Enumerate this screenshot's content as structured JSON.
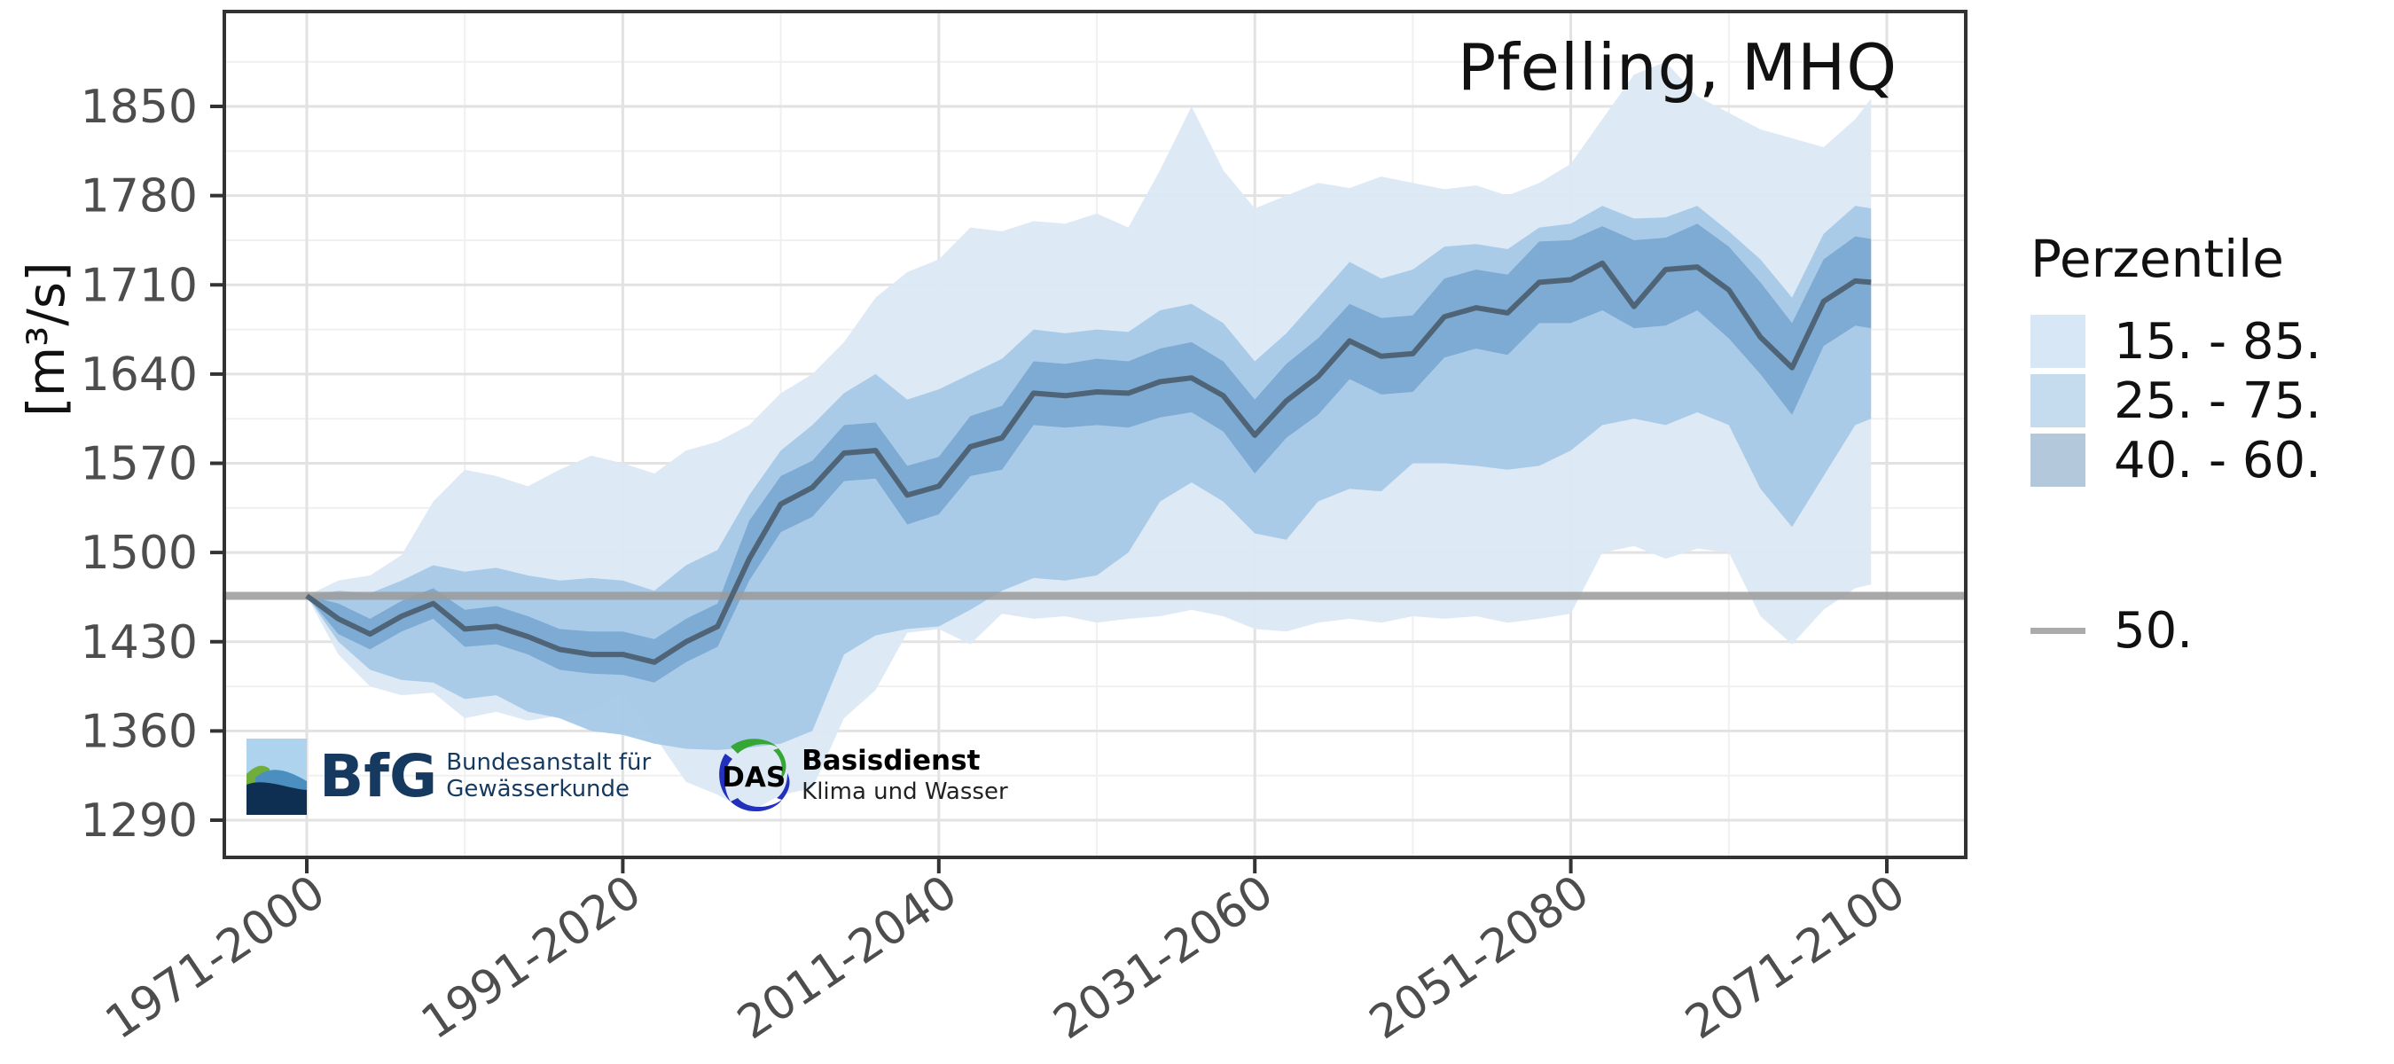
{
  "title": "Pfelling, MHQ",
  "y_axis": {
    "label": "[m³/s]"
  },
  "legend": {
    "title": "Perzentile",
    "bands": [
      {
        "label": "15. - 85.",
        "color": "#d8e7f5"
      },
      {
        "label": "25. - 75.",
        "color": "#c5dbee"
      },
      {
        "label": "40. - 60.",
        "color": "#b4c8dc"
      }
    ],
    "line": {
      "label": "50.",
      "color": "#ababab"
    }
  },
  "logos": {
    "bfg": {
      "acronym": "BfG",
      "line1": "Bundesanstalt für",
      "line2": "Gewässerkunde"
    },
    "das": {
      "acronym": "DAS",
      "line1": "Basisdienst",
      "line2": "Klima und Wasser"
    }
  },
  "chart_data": {
    "type": "area",
    "title": "Pfelling, MHQ",
    "xlabel": "",
    "ylabel": "[m³/s]",
    "ylim": [
      1249,
      1924
    ],
    "y_ticks": [
      1290,
      1360,
      1430,
      1500,
      1570,
      1640,
      1710,
      1780,
      1850
    ],
    "x_tick_years": [
      1971,
      1991,
      2011,
      2031,
      2051,
      2071
    ],
    "x_tick_labels": [
      "1971-2000",
      "1991-2020",
      "2011-2040",
      "2031-2060",
      "2051-2080",
      "2071-2100"
    ],
    "grid": {
      "major_color": "#e2e2e2",
      "minor_color": "#f0f0f0",
      "border_color": "#333333"
    },
    "reference_line": {
      "label": "50.",
      "value": 1466,
      "color": "#9a9a9a"
    },
    "median_color": "#4f6477",
    "band_fill_colors": {
      "p15_p85": "#dbe9f6",
      "p25_p75": "#a6c9e7",
      "p40_p60": "#7aa9d2"
    },
    "x_years": [
      1971,
      1973,
      1975,
      1977,
      1979,
      1981,
      1983,
      1985,
      1987,
      1989,
      1991,
      1993,
      1995,
      1997,
      1999,
      2001,
      2003,
      2005,
      2007,
      2009,
      2011,
      2013,
      2015,
      2017,
      2019,
      2021,
      2023,
      2025,
      2027,
      2029,
      2031,
      2033,
      2035,
      2037,
      2039,
      2041,
      2043,
      2045,
      2047,
      2049,
      2051,
      2053,
      2055,
      2057,
      2059,
      2061,
      2063,
      2065,
      2067,
      2069,
      2070
    ],
    "series": [
      {
        "name": "p15",
        "values": [
          1466,
          1420,
          1395,
          1388,
          1390,
          1370,
          1375,
          1368,
          1372,
          1375,
          1390,
          1356,
          1320,
          1310,
          1296,
          1310,
          1315,
          1370,
          1392,
          1437,
          1440,
          1428,
          1452,
          1448,
          1450,
          1445,
          1448,
          1450,
          1455,
          1450,
          1440,
          1438,
          1445,
          1448,
          1445,
          1450,
          1448,
          1450,
          1445,
          1448,
          1452,
          1500,
          1505,
          1495,
          1503,
          1500,
          1450,
          1428,
          1455,
          1472,
          1475
        ]
      },
      {
        "name": "p25",
        "values": [
          1466,
          1430,
          1408,
          1400,
          1398,
          1385,
          1388,
          1375,
          1370,
          1360,
          1357,
          1350,
          1346,
          1345,
          1347,
          1350,
          1360,
          1420,
          1435,
          1440,
          1442,
          1455,
          1470,
          1480,
          1478,
          1482,
          1500,
          1540,
          1555,
          1540,
          1515,
          1510,
          1540,
          1550,
          1548,
          1570,
          1570,
          1568,
          1565,
          1568,
          1580,
          1600,
          1605,
          1600,
          1610,
          1600,
          1550,
          1520,
          1560,
          1600,
          1605
        ]
      },
      {
        "name": "p40",
        "values": [
          1466,
          1436,
          1424,
          1438,
          1448,
          1426,
          1428,
          1420,
          1408,
          1405,
          1404,
          1398,
          1414,
          1426,
          1478,
          1516,
          1528,
          1556,
          1558,
          1522,
          1530,
          1560,
          1565,
          1600,
          1598,
          1600,
          1598,
          1606,
          1610,
          1595,
          1562,
          1590,
          1608,
          1636,
          1624,
          1626,
          1653,
          1660,
          1655,
          1680,
          1680,
          1690,
          1676,
          1678,
          1690,
          1668,
          1640,
          1608,
          1662,
          1678,
          1676
        ]
      },
      {
        "name": "p50",
        "values": [
          1466,
          1448,
          1436,
          1450,
          1460,
          1440,
          1442,
          1434,
          1424,
          1420,
          1420,
          1414,
          1430,
          1442,
          1495,
          1538,
          1551,
          1578,
          1580,
          1545,
          1552,
          1583,
          1590,
          1625,
          1623,
          1626,
          1625,
          1634,
          1637,
          1623,
          1592,
          1619,
          1638,
          1666,
          1654,
          1656,
          1685,
          1692,
          1688,
          1712,
          1714,
          1727,
          1693,
          1722,
          1724,
          1706,
          1669,
          1645,
          1697,
          1713,
          1712
        ]
      },
      {
        "name": "p60",
        "values": [
          1466,
          1460,
          1448,
          1462,
          1472,
          1455,
          1458,
          1450,
          1440,
          1438,
          1438,
          1432,
          1448,
          1460,
          1525,
          1560,
          1572,
          1600,
          1602,
          1568,
          1575,
          1607,
          1615,
          1650,
          1648,
          1652,
          1650,
          1660,
          1665,
          1650,
          1620,
          1648,
          1668,
          1695,
          1684,
          1686,
          1715,
          1722,
          1718,
          1744,
          1745,
          1756,
          1745,
          1747,
          1758,
          1740,
          1712,
          1680,
          1730,
          1748,
          1746
        ]
      },
      {
        "name": "p75",
        "values": [
          1466,
          1470,
          1468,
          1478,
          1490,
          1485,
          1488,
          1482,
          1478,
          1480,
          1478,
          1470,
          1490,
          1502,
          1545,
          1580,
          1600,
          1625,
          1640,
          1620,
          1628,
          1640,
          1652,
          1675,
          1672,
          1675,
          1673,
          1690,
          1695,
          1680,
          1650,
          1672,
          1700,
          1728,
          1715,
          1722,
          1740,
          1742,
          1738,
          1755,
          1758,
          1772,
          1762,
          1763,
          1772,
          1752,
          1730,
          1700,
          1750,
          1772,
          1770
        ]
      },
      {
        "name": "p85",
        "values": [
          1466,
          1478,
          1482,
          1498,
          1540,
          1565,
          1560,
          1552,
          1565,
          1576,
          1570,
          1562,
          1580,
          1587,
          1600,
          1625,
          1640,
          1665,
          1700,
          1720,
          1730,
          1755,
          1752,
          1760,
          1758,
          1766,
          1755,
          1800,
          1850,
          1800,
          1770,
          1780,
          1790,
          1786,
          1795,
          1790,
          1785,
          1788,
          1780,
          1790,
          1805,
          1840,
          1875,
          1885,
          1858,
          1845,
          1832,
          1825,
          1818,
          1840,
          1856
        ]
      }
    ],
    "legend_position": "right"
  }
}
